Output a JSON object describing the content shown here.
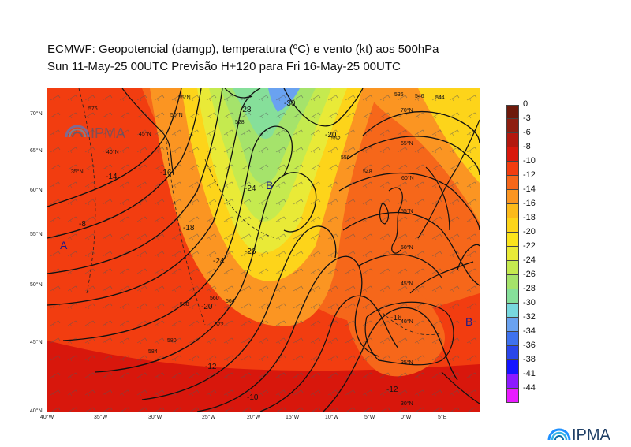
{
  "header": {
    "line1": "ECMWF:  Geopotencial (damgp), temperatura (ºC) e vento (kt) aos 500hPa",
    "line2": "Sun 11-May-25 00UTC Previsão H+120 para Fri 16-May-25 00UTC"
  },
  "map": {
    "lon_labels": [
      "40°W",
      "35°W",
      "30°W",
      "25°W",
      "20°W",
      "15°W",
      "10°W",
      "5°W",
      "0°W",
      "5°E"
    ],
    "lat_labels": [
      "70°N",
      "65°N",
      "60°N",
      "55°N",
      "50°N",
      "45°N",
      "40°N"
    ],
    "inner_lat_labels": [
      "55°N",
      "50°N",
      "45°N",
      "40°N",
      "35°N",
      "70°N",
      "65°N",
      "60°N",
      "55°N",
      "50°N",
      "45°N",
      "40°N",
      "35°N",
      "30°N"
    ],
    "pressure_centers": {
      "high": "A",
      "low_north": "B",
      "low_east": "B"
    },
    "temperature_labels": [
      "-28",
      "-24",
      "-26",
      "-24",
      "-20",
      "-18",
      "-16",
      "-14",
      "-12",
      "-10",
      "-8",
      "-30",
      "-12",
      "-16",
      "-20"
    ],
    "height_labels": [
      "576",
      "560",
      "564",
      "568",
      "572",
      "580",
      "584",
      "528",
      "556",
      "552",
      "548",
      "536",
      "540",
      "544"
    ]
  },
  "legend": {
    "labels": [
      "0",
      "-3",
      "-6",
      "-8",
      "-10",
      "-12",
      "-14",
      "-16",
      "-18",
      "-20",
      "-22",
      "-24",
      "-26",
      "-28",
      "-30",
      "-32",
      "-34",
      "-36",
      "-38",
      "-41",
      "-44"
    ],
    "colors": [
      "#6e1a0b",
      "#8e1e10",
      "#b3180f",
      "#d8170c",
      "#f23d10",
      "#f6671a",
      "#fb9522",
      "#fcba1b",
      "#fdd41a",
      "#fae31c",
      "#e9ea37",
      "#c5ea4f",
      "#a5e36b",
      "#86df9a",
      "#78d8de",
      "#6aa2f0",
      "#3f72ee",
      "#2a46eb",
      "#1414ff",
      "#8c1aff",
      "#e91bff"
    ]
  },
  "logos": {
    "top": "IPMA",
    "bottom": "IPMA"
  }
}
